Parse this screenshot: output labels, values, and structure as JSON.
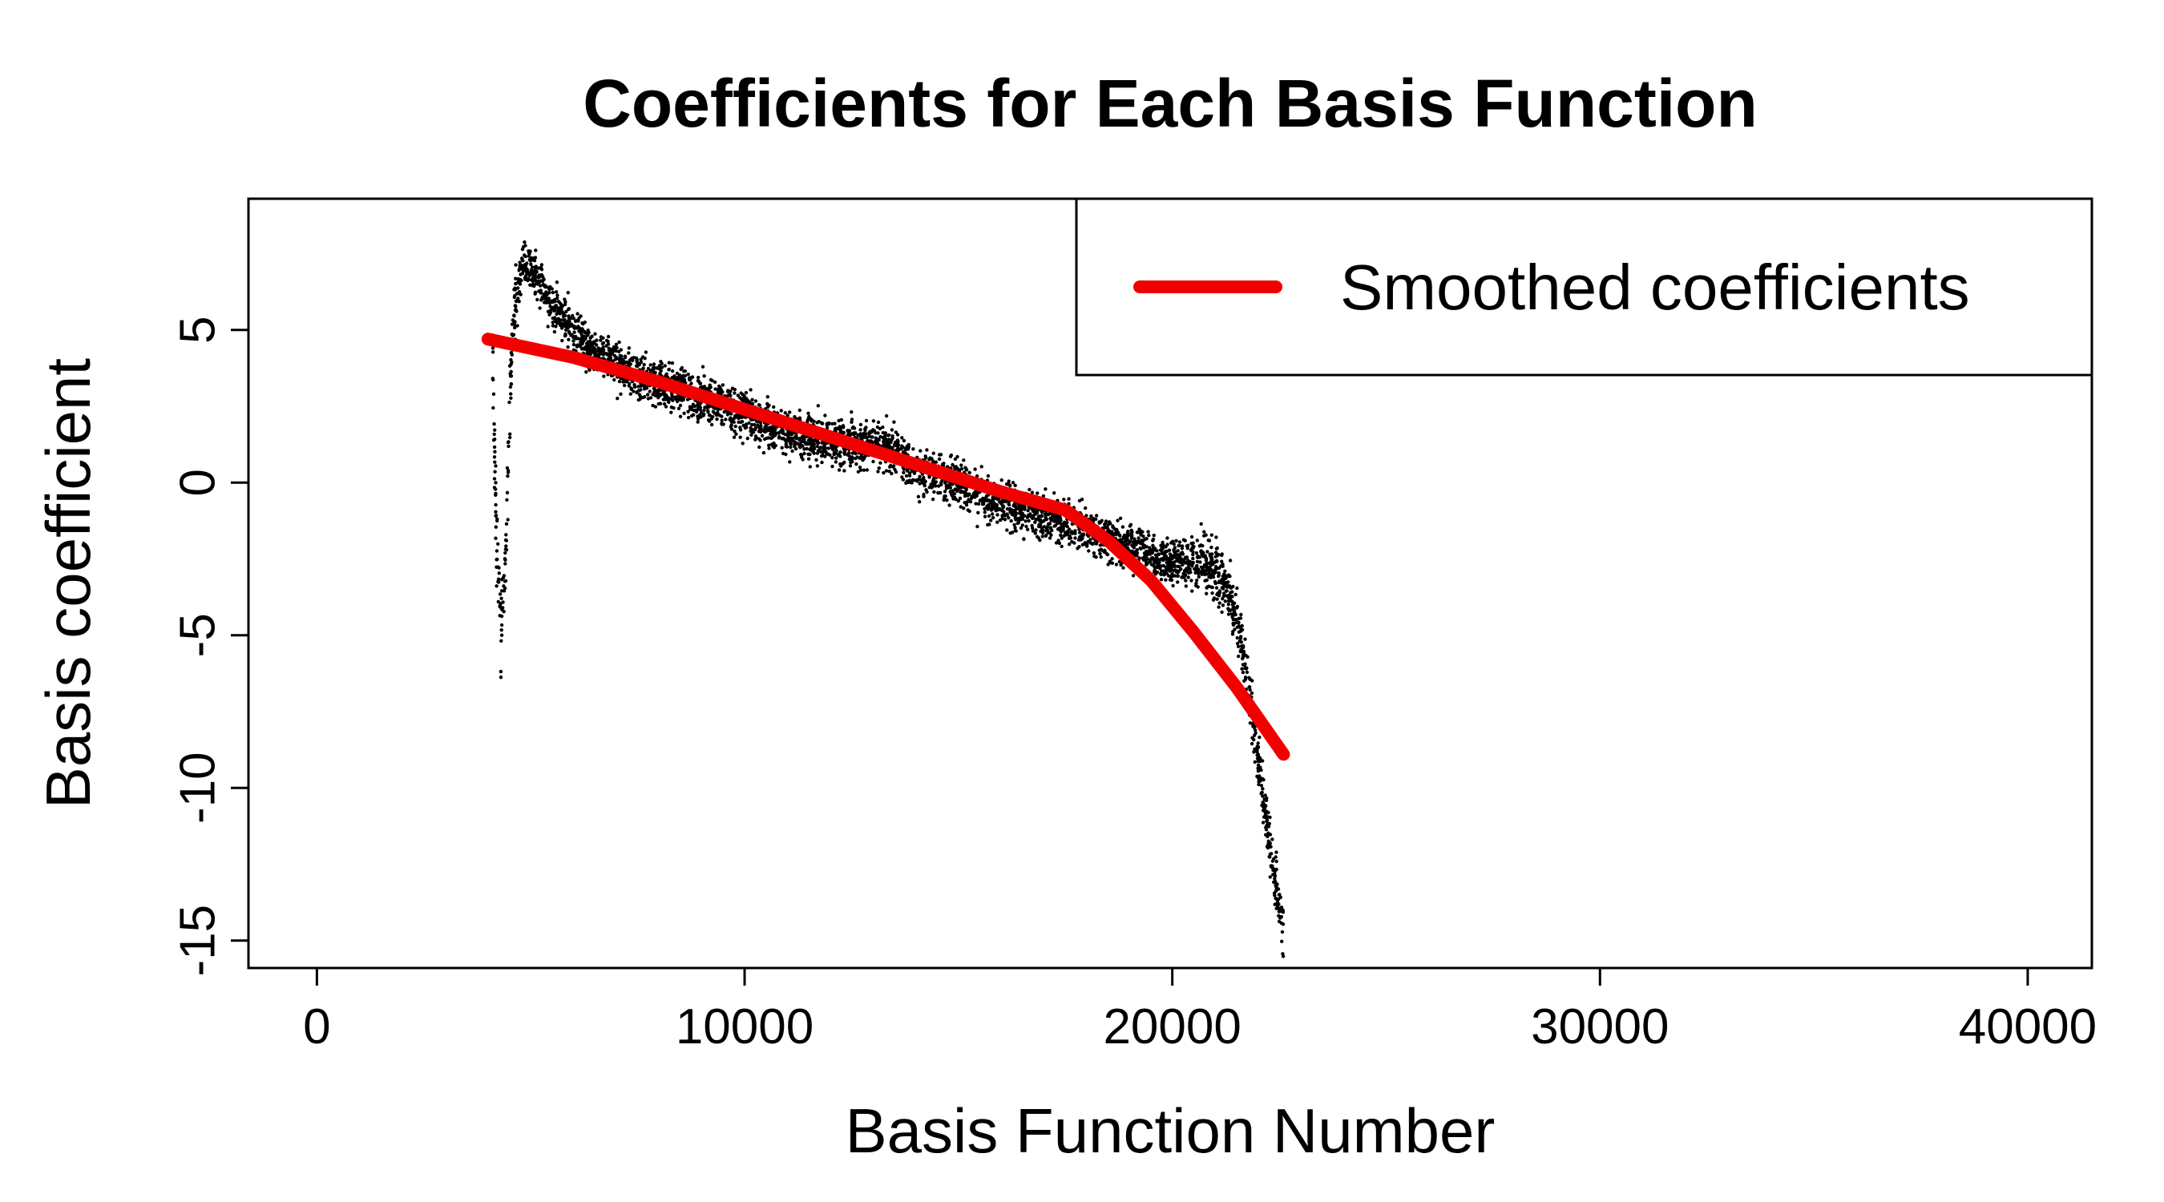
{
  "chart_data": {
    "type": "scatter",
    "title": "Coefficients for Each Basis Function",
    "xlabel": "Basis Function Number",
    "ylabel": "Basis coefficient",
    "xlim": [
      -1600,
      41500
    ],
    "ylim": [
      -15.9,
      9.3
    ],
    "x_ticks": [
      0,
      10000,
      20000,
      30000,
      40000
    ],
    "y_ticks": [
      5,
      0,
      -5,
      -10,
      -15
    ],
    "legend": {
      "position": "top-right",
      "entries": [
        "Smoothed coefficients"
      ]
    },
    "colors": {
      "points": "#000000",
      "smooth_line": "#f20000"
    },
    "grid": false,
    "series": [
      {
        "name": "Smoothed coefficients",
        "kind": "line",
        "x": [
          4000,
          6000,
          8000,
          10000,
          12000,
          14000,
          16000,
          17500,
          18500,
          19500,
          20500,
          21500,
          22600
        ],
        "y": [
          4.7,
          4.1,
          3.3,
          2.4,
          1.5,
          0.6,
          -0.3,
          -0.9,
          -1.9,
          -3.2,
          -4.9,
          -6.7,
          -8.9
        ]
      },
      {
        "kind": "scatter",
        "x": [
          4100,
          4200,
          4300,
          4400,
          4500,
          4600,
          4700,
          4800,
          5000,
          5200,
          5500,
          6000,
          6500,
          7000,
          7500,
          8000,
          8500,
          9000,
          9500,
          10000,
          11000,
          12000,
          13000,
          13500,
          14000,
          15000,
          16000,
          17000,
          18000,
          18800,
          19500,
          20000,
          20500,
          21000,
          21300,
          21600,
          21800,
          22000,
          22200,
          22400,
          22600
        ],
        "y": [
          5.0,
          -2.0,
          -4.5,
          -3.0,
          2.0,
          5.5,
          6.5,
          7.2,
          7.0,
          6.5,
          5.8,
          5.0,
          4.3,
          3.9,
          3.5,
          3.2,
          3.1,
          2.8,
          2.6,
          2.2,
          1.6,
          1.4,
          1.2,
          1.0,
          0.5,
          0.0,
          -0.7,
          -1.1,
          -1.5,
          -2.0,
          -2.3,
          -2.6,
          -2.5,
          -2.8,
          -3.5,
          -5.0,
          -7.0,
          -9.0,
          -11.0,
          -13.0,
          -14.5
        ]
      }
    ]
  }
}
